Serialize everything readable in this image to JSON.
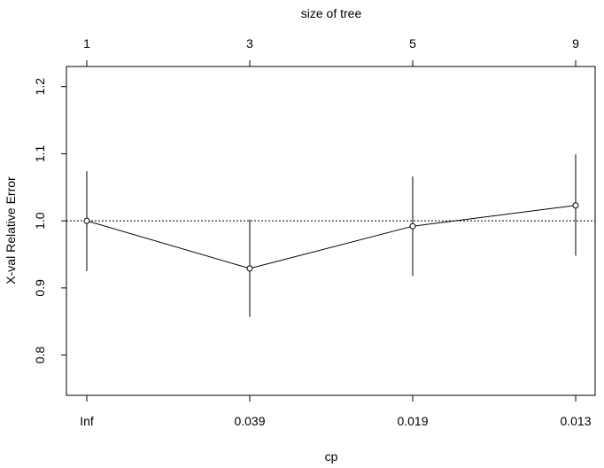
{
  "chart_data": {
    "type": "line",
    "title": "",
    "xlabel": "cp",
    "ylabel": "X-val Relative Error",
    "top_axis_label": "size of tree",
    "x_categories": [
      "Inf",
      "0.039",
      "0.019",
      "0.013"
    ],
    "top_categories": [
      "1",
      "3",
      "5",
      "9"
    ],
    "series": [
      {
        "values": [
          1.0,
          0.929,
          0.992,
          1.023
        ],
        "error_low": [
          0.925,
          0.857,
          0.918,
          0.948
        ],
        "error_high": [
          1.074,
          1.002,
          1.066,
          1.099
        ]
      }
    ],
    "reference_line": 1.0,
    "yticks": [
      "0.8",
      "0.9",
      "1.0",
      "1.1",
      "1.2"
    ],
    "ylim": [
      0.74,
      1.23
    ],
    "grid": false,
    "legend": "none",
    "colors": {
      "line": "#000000",
      "background": "#ffffff"
    }
  }
}
